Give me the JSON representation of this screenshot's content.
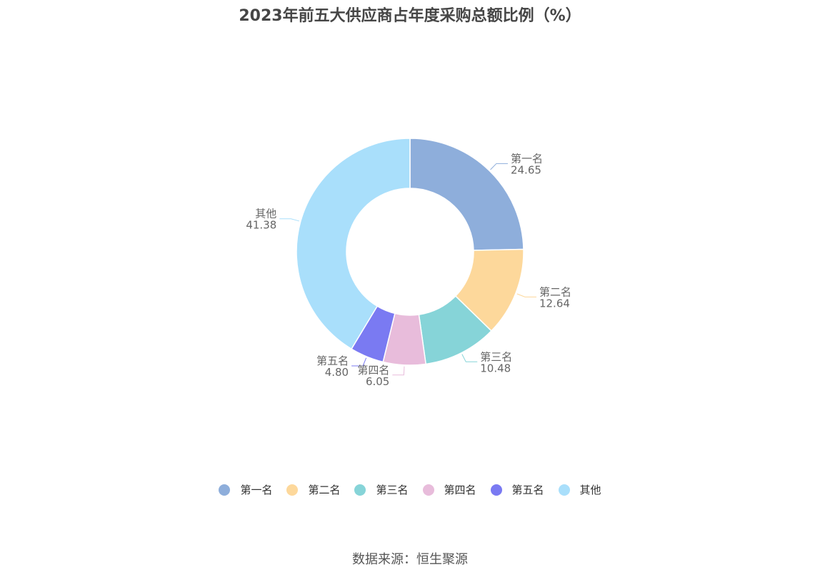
{
  "chart_data": {
    "type": "pie",
    "title": "2023年前五大供应商占年度采购总额比例（%）",
    "categories": [
      "第一名",
      "第二名",
      "第三名",
      "第四名",
      "第五名",
      "其他"
    ],
    "values": [
      24.65,
      12.64,
      10.48,
      6.05,
      4.8,
      41.38
    ],
    "value_labels": [
      "24.65",
      "12.64",
      "10.48",
      "6.05",
      "4.80",
      "41.38"
    ],
    "colors": [
      "#8eaedb",
      "#fdd89b",
      "#86d4d8",
      "#e8bcdb",
      "#7a7af2",
      "#a9dffb"
    ],
    "legend_position": "bottom"
  },
  "source": "数据来源：恒生聚源"
}
